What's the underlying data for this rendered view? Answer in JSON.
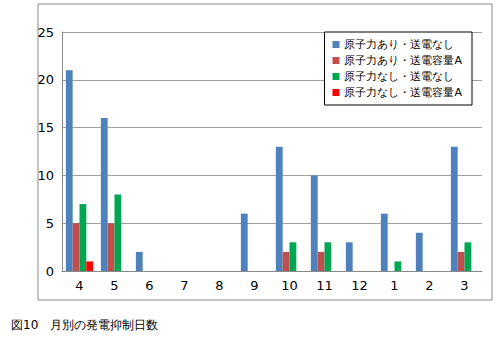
{
  "chart_data": {
    "type": "bar",
    "title": "図10　月別の発電抑制日数",
    "categories": [
      "4",
      "5",
      "6",
      "7",
      "8",
      "9",
      "10",
      "11",
      "12",
      "1",
      "2",
      "3"
    ],
    "series": [
      {
        "name": "原子力あり・送電なし",
        "color": "#4f81bd",
        "values": [
          21,
          16,
          2,
          0,
          0,
          6,
          13,
          10,
          3,
          6,
          4,
          13
        ]
      },
      {
        "name": "原子力あり・送電容量A",
        "color": "#c0504d",
        "values": [
          5,
          5,
          0,
          0,
          0,
          0,
          2,
          2,
          0,
          0,
          0,
          2
        ]
      },
      {
        "name": "原子力なし・送電なし",
        "color": "#00a651",
        "values": [
          7,
          8,
          0,
          0,
          0,
          0,
          3,
          3,
          0,
          1,
          0,
          3
        ]
      },
      {
        "name": "原子力なし・送電容量A",
        "color": "#ff0000",
        "values": [
          1,
          0,
          0,
          0,
          0,
          0,
          0,
          0,
          0,
          0,
          0,
          0
        ]
      }
    ],
    "ylim": [
      0,
      25
    ],
    "yticks": [
      0,
      5,
      10,
      15,
      20,
      25
    ],
    "grid": true,
    "legend": "top-right"
  }
}
